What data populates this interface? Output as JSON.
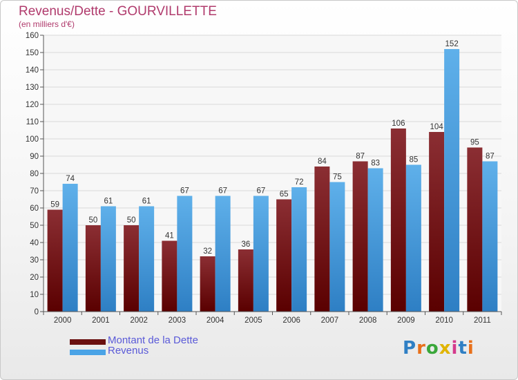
{
  "title": "Revenus/Dette - GOURVILLETTE",
  "subtitle": "(en milliers d'€)",
  "colors": {
    "debt_top": "#8b2e33",
    "debt_bottom": "#5a0000",
    "revenue_top": "#5fb0ea",
    "revenue_bottom": "#2e7fc4",
    "title": "#b03a6c",
    "legend_text": "#5a5ad8"
  },
  "legend": [
    {
      "label": "Montant de la Dette",
      "color": "#6a1010"
    },
    {
      "label": "Revenus",
      "color": "#4aa3e6"
    }
  ],
  "logo": {
    "text": "Proxiti"
  },
  "chart_data": {
    "type": "bar",
    "categories": [
      "2000",
      "2001",
      "2002",
      "2003",
      "2004",
      "2005",
      "2006",
      "2007",
      "2008",
      "2009",
      "2010",
      "2011"
    ],
    "series": [
      {
        "name": "Montant de la Dette",
        "values": [
          59,
          50,
          50,
          41,
          32,
          36,
          65,
          84,
          87,
          106,
          104,
          95
        ]
      },
      {
        "name": "Revenus",
        "values": [
          74,
          61,
          61,
          67,
          67,
          67,
          72,
          75,
          83,
          85,
          152,
          87
        ]
      }
    ],
    "yticks": [
      0,
      10,
      20,
      30,
      40,
      50,
      60,
      70,
      80,
      90,
      100,
      110,
      120,
      130,
      140,
      150,
      160
    ],
    "ylim": [
      0,
      160
    ],
    "grid": true,
    "legend_position": "bottom-left"
  }
}
